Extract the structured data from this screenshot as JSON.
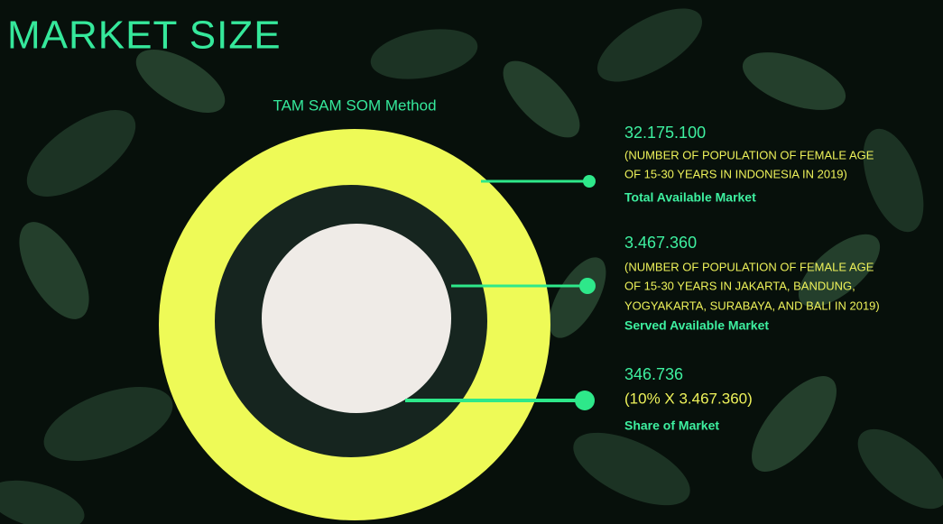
{
  "header": {
    "title": "MARKET SIZE",
    "subtitle": "TAM SAM SOM Method"
  },
  "items": [
    {
      "value": "32.175.100",
      "description": [
        "(NUMBER OF POPULATION OF FEMALE AGE",
        "OF 15-30 YEARS IN INDONESIA IN 2019)"
      ],
      "label": "Total Available Market"
    },
    {
      "value": "3.467.360",
      "description": [
        "(NUMBER OF POPULATION OF FEMALE AGE",
        "OF 15-30 YEARS IN JAKARTA, BANDUNG,",
        "YOGYAKARTA, SURABAYA, AND BALI IN 2019)"
      ],
      "label": "Served Available Market"
    },
    {
      "value": "346.736",
      "description": [
        "(10% X 3.467.360)"
      ],
      "label": "Share of Market"
    }
  ]
}
